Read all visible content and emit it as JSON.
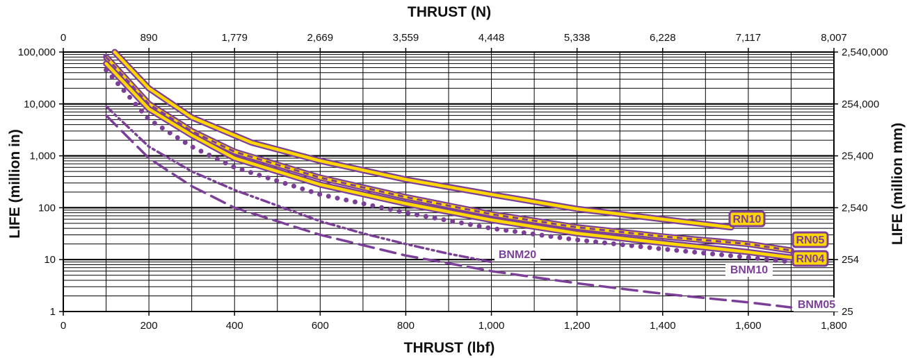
{
  "chart_data": {
    "type": "line",
    "title": "",
    "xlabel": "THRUST (lbf)",
    "x2label": "THRUST (N)",
    "ylabel": "LIFE (million in)",
    "y2label": "LIFE (million mm)",
    "xlim": [
      0,
      1800
    ],
    "ylim": [
      1,
      100000
    ],
    "yscale": "log",
    "grid": true,
    "x_ticks": [
      "0",
      "200",
      "400",
      "600",
      "800",
      "1,000",
      "1,200",
      "1,400",
      "1,600",
      "1,800"
    ],
    "x2_ticks": [
      "0",
      "890",
      "1,779",
      "2,669",
      "3,559",
      "4,448",
      "5,338",
      "6,228",
      "7,117",
      "8,007"
    ],
    "y_ticks": [
      "1",
      "10",
      "100",
      "1,000",
      "10,000",
      "100,000"
    ],
    "y2_ticks": [
      "25",
      "254",
      "2,540",
      "25,400",
      "254,000",
      "2,540,000"
    ],
    "series": [
      {
        "name": "RN10",
        "style": "double-solid",
        "x": [
          120,
          200,
          300,
          440,
          600,
          800,
          1000,
          1200,
          1400,
          1560
        ],
        "y": [
          100000,
          20000,
          5500,
          1800,
          800,
          350,
          180,
          95,
          60,
          42
        ]
      },
      {
        "name": "RN05",
        "style": "double-dashed",
        "x": [
          100,
          200,
          300,
          400,
          600,
          800,
          1000,
          1200,
          1400,
          1600,
          1700
        ],
        "y": [
          80000,
          10000,
          3000,
          1200,
          380,
          160,
          75,
          42,
          28,
          20,
          15
        ]
      },
      {
        "name": "RN04",
        "style": "double-solid",
        "x": [
          100,
          200,
          300,
          400,
          600,
          800,
          1000,
          1200,
          1400,
          1600,
          1700
        ],
        "y": [
          60000,
          8000,
          2500,
          900,
          280,
          120,
          58,
          32,
          21,
          14,
          11
        ]
      },
      {
        "name": "BNM10",
        "style": "dotted",
        "x": [
          100,
          200,
          300,
          400,
          600,
          800,
          1000,
          1200,
          1400,
          1600,
          1700
        ],
        "y": [
          45000,
          5000,
          1500,
          600,
          180,
          80,
          40,
          24,
          16,
          11,
          9
        ]
      },
      {
        "name": "BNM20",
        "style": "dash-dot",
        "x": [
          100,
          200,
          300,
          400,
          500,
          600,
          700,
          800,
          900,
          1000
        ],
        "y": [
          9000,
          1500,
          500,
          220,
          110,
          55,
          32,
          20,
          13,
          9
        ]
      },
      {
        "name": "BNM05",
        "style": "dashed",
        "x": [
          100,
          200,
          300,
          400,
          600,
          800,
          1000,
          1200,
          1400,
          1600,
          1700
        ],
        "y": [
          6000,
          900,
          260,
          100,
          30,
          12,
          6,
          3.5,
          2.2,
          1.5,
          1.2
        ]
      }
    ],
    "colors": {
      "purple": "#7B3F98",
      "yellow": "#FFD700",
      "grid": "#000000"
    }
  }
}
